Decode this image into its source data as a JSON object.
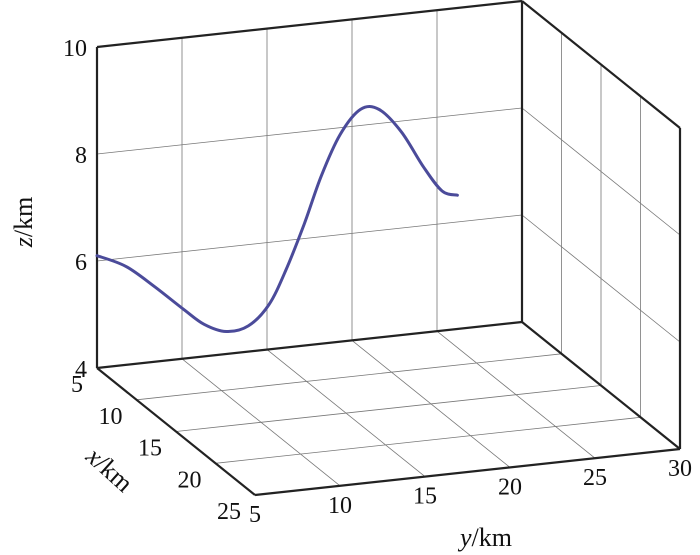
{
  "chart_data": {
    "type": "line",
    "projection": "3d",
    "grid": true,
    "xlabel": {
      "var": "x",
      "unit": "/km"
    },
    "ylabel": {
      "var": "y",
      "unit": "/km"
    },
    "zlabel": {
      "var": "z",
      "unit": "/km"
    },
    "xlim": [
      5,
      25
    ],
    "ylim": [
      5,
      30
    ],
    "zlim": [
      4,
      10
    ],
    "xticks": [
      5,
      10,
      15,
      20,
      25
    ],
    "yticks": [
      5,
      10,
      15,
      20,
      25,
      30
    ],
    "zticks": [
      4,
      6,
      8,
      10
    ],
    "line_color": "#4b4b9a",
    "series": [
      {
        "points": [
          {
            "x": 5,
            "y": 5,
            "z": 6.1
          },
          {
            "x": 5,
            "y": 6.7,
            "z": 5.84
          },
          {
            "x": 5,
            "y": 8.4,
            "z": 5.4
          },
          {
            "x": 5,
            "y": 10.1,
            "z": 4.92
          },
          {
            "x": 5,
            "y": 11.3,
            "z": 4.6
          },
          {
            "x": 5,
            "y": 12.6,
            "z": 4.42
          },
          {
            "x": 5,
            "y": 13.9,
            "z": 4.48
          },
          {
            "x": 5,
            "y": 15.1,
            "z": 4.83
          },
          {
            "x": 5,
            "y": 16.1,
            "z": 5.44
          },
          {
            "x": 5,
            "y": 17.2,
            "z": 6.28
          },
          {
            "x": 5,
            "y": 18.2,
            "z": 7.14
          },
          {
            "x": 5,
            "y": 19.3,
            "z": 7.87
          },
          {
            "x": 5,
            "y": 20.5,
            "z": 8.3
          },
          {
            "x": 5,
            "y": 21.6,
            "z": 8.26
          },
          {
            "x": 5,
            "y": 22.9,
            "z": 7.8
          },
          {
            "x": 5,
            "y": 24.2,
            "z": 7.1
          },
          {
            "x": 5,
            "y": 25.3,
            "z": 6.61
          },
          {
            "x": 5,
            "y": 26.2,
            "z": 6.5
          }
        ]
      }
    ]
  }
}
